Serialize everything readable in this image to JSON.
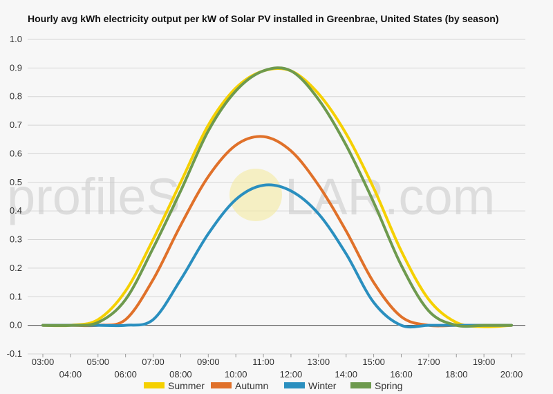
{
  "chart_data": {
    "type": "line",
    "title": "Hourly avg kWh electricity output per kW of Solar PV installed in Greenbrae, United States (by season)",
    "xlabel": "",
    "ylabel": "",
    "x": [
      "03:00",
      "04:00",
      "05:00",
      "06:00",
      "07:00",
      "08:00",
      "09:00",
      "10:00",
      "11:00",
      "12:00",
      "13:00",
      "14:00",
      "15:00",
      "16:00",
      "17:00",
      "18:00",
      "19:00",
      "20:00"
    ],
    "ylim": [
      -0.1,
      1.0
    ],
    "yticks": [
      -0.1,
      0.0,
      0.1,
      0.2,
      0.3,
      0.4,
      0.5,
      0.6,
      0.7,
      0.8,
      0.9,
      1.0
    ],
    "ytick_labels": [
      "-0.1",
      "0.0",
      "0.1",
      "0.2",
      "0.3",
      "0.4",
      "0.5",
      "0.6",
      "0.7",
      "0.8",
      "0.9",
      "1.0"
    ],
    "grid": true,
    "legend_position": "bottom",
    "series": [
      {
        "name": "Summer",
        "color": "#f5d000",
        "values": [
          0.0,
          0.0,
          0.02,
          0.12,
          0.3,
          0.5,
          0.7,
          0.83,
          0.89,
          0.89,
          0.81,
          0.67,
          0.48,
          0.26,
          0.09,
          0.01,
          -0.005,
          0.0
        ]
      },
      {
        "name": "Autumn",
        "color": "#e0712a",
        "values": [
          0.0,
          0.0,
          0.0,
          0.02,
          0.16,
          0.35,
          0.52,
          0.63,
          0.66,
          0.61,
          0.49,
          0.33,
          0.15,
          0.03,
          0.0,
          0.0,
          0.0,
          0.0
        ]
      },
      {
        "name": "Winter",
        "color": "#2a8fbf",
        "values": [
          0.0,
          0.0,
          0.0,
          0.0,
          0.02,
          0.16,
          0.32,
          0.44,
          0.49,
          0.47,
          0.39,
          0.25,
          0.08,
          0.0,
          0.0,
          0.0,
          0.0,
          0.0
        ]
      },
      {
        "name": "Spring",
        "color": "#6e9a4e",
        "values": [
          0.0,
          0.0,
          0.01,
          0.09,
          0.27,
          0.47,
          0.68,
          0.82,
          0.89,
          0.89,
          0.79,
          0.63,
          0.43,
          0.21,
          0.05,
          0.0,
          0.0,
          0.0
        ]
      }
    ]
  },
  "watermark": {
    "text_left": "profileS",
    "text_right": "LAR.com"
  }
}
